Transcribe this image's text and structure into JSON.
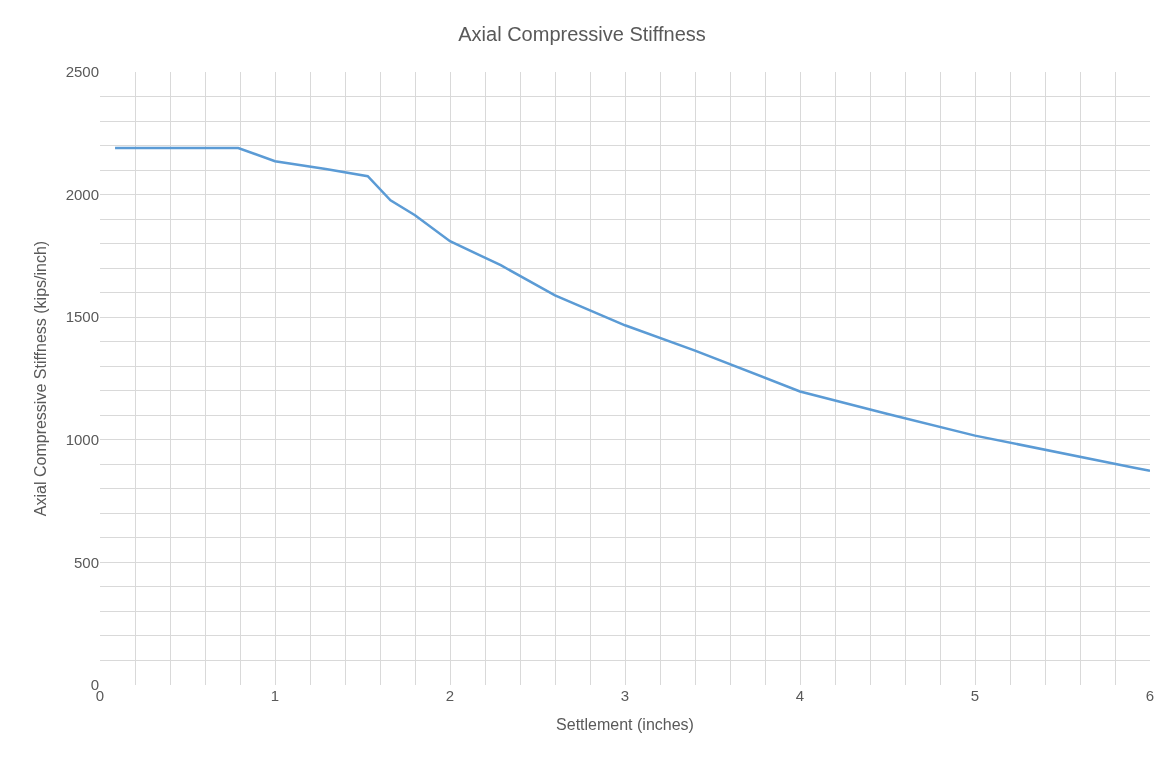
{
  "chart_data": {
    "type": "line",
    "title": "Axial Compressive Stiffness",
    "xlabel": "Settlement (inches)",
    "ylabel": "Axial Compressive Stiffness (kips/inch)",
    "x": [
      0.086,
      0.79,
      1.0,
      1.29,
      1.53,
      1.66,
      1.8,
      2.0,
      2.29,
      2.6,
      3.0,
      3.4,
      4.0,
      4.49,
      5.0,
      5.91,
      6.0
    ],
    "series": [
      {
        "color": "#5b9bd5",
        "values": [
          2190,
          2190,
          2136,
          2104,
          2075,
          1977,
          1916,
          1810,
          1712,
          1589,
          1467,
          1364,
          1197,
          1107,
          1017,
          886,
          874
        ]
      }
    ],
    "xlim": [
      0,
      6
    ],
    "ylim": [
      0,
      2500
    ],
    "xticks": [
      0,
      {
        "value": 0.2,
        "label": null
      },
      {
        "value": 0.4,
        "label": null
      },
      {
        "value": 0.6,
        "label": null
      },
      {
        "value": 0.8,
        "label": null
      },
      1,
      {
        "value": 1.2,
        "label": null
      },
      {
        "value": 1.4,
        "label": null
      },
      {
        "value": 1.6,
        "label": null
      },
      {
        "value": 1.8,
        "label": null
      },
      2,
      {
        "value": 2.2,
        "label": null
      },
      {
        "value": 2.4,
        "label": null
      },
      {
        "value": 2.6,
        "label": null
      },
      {
        "value": 2.8,
        "label": null
      },
      3,
      {
        "value": 3.2,
        "label": null
      },
      {
        "value": 3.4,
        "label": null
      },
      {
        "value": 3.6,
        "label": null
      },
      {
        "value": 3.8,
        "label": null
      },
      4,
      {
        "value": 4.2,
        "label": null
      },
      {
        "value": 4.4,
        "label": null
      },
      {
        "value": 4.6,
        "label": null
      },
      {
        "value": 4.8,
        "label": null
      },
      5,
      {
        "value": 5.2,
        "label": null
      },
      {
        "value": 5.4,
        "label": null
      },
      {
        "value": 5.6,
        "label": null
      },
      {
        "value": 5.8,
        "label": null
      },
      6
    ],
    "yticks": [
      0,
      {
        "value": 100,
        "label": null
      },
      {
        "value": 200,
        "label": null
      },
      {
        "value": 300,
        "label": null
      },
      {
        "value": 400,
        "label": null
      },
      500,
      {
        "value": 600,
        "label": null
      },
      {
        "value": 700,
        "label": null
      },
      {
        "value": 800,
        "label": null
      },
      {
        "value": 900,
        "label": null
      },
      1000,
      {
        "value": 1100,
        "label": null
      },
      {
        "value": 1200,
        "label": null
      },
      {
        "value": 1300,
        "label": null
      },
      {
        "value": 1400,
        "label": null
      },
      1500,
      {
        "value": 1600,
        "label": null
      },
      {
        "value": 1700,
        "label": null
      },
      {
        "value": 1800,
        "label": null
      },
      {
        "value": 1900,
        "label": null
      },
      2000,
      {
        "value": 2100,
        "label": null
      },
      {
        "value": 2200,
        "label": null
      },
      {
        "value": 2300,
        "label": null
      },
      {
        "value": 2400,
        "label": null
      },
      2500
    ],
    "grid": true,
    "marker": "none",
    "line_style": "solid"
  }
}
